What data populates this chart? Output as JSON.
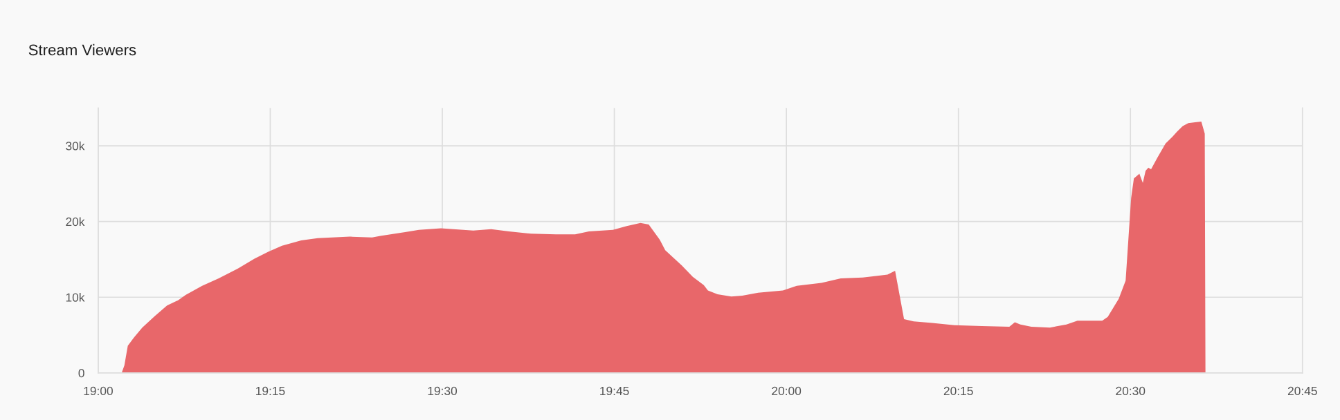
{
  "chart_data": {
    "type": "area",
    "title": "Stream Viewers",
    "series": [
      {
        "color": "#e8676a",
        "x": [
          19.034,
          19.038,
          19.043,
          19.052,
          19.064,
          19.082,
          19.1,
          19.116,
          19.127,
          19.151,
          19.175,
          19.203,
          19.227,
          19.247,
          19.267,
          19.295,
          19.319,
          19.366,
          19.398,
          19.41,
          19.446,
          19.466,
          19.498,
          19.545,
          19.571,
          19.597,
          19.629,
          19.665,
          19.693,
          19.713,
          19.748,
          19.768,
          19.788,
          19.8,
          19.816,
          19.824,
          19.848,
          19.864,
          19.88,
          19.886,
          19.9,
          19.92,
          19.936,
          19.959,
          19.995,
          20.015,
          20.051,
          20.079,
          20.111,
          20.147,
          20.158,
          20.171,
          20.185,
          20.212,
          20.244,
          20.284,
          20.324,
          20.332,
          20.34,
          20.356,
          20.383,
          20.407,
          20.423,
          20.459,
          20.467,
          20.483,
          20.493,
          20.501,
          20.505,
          20.513,
          20.518,
          20.522,
          20.526,
          20.53,
          20.539,
          20.551,
          20.561,
          20.568,
          20.576,
          20.584,
          20.594,
          20.603,
          20.608,
          20.609
        ],
        "values": [
          0,
          1000,
          3600,
          4700,
          6000,
          7500,
          8900,
          9600,
          10300,
          11500,
          12500,
          13800,
          15100,
          16000,
          16800,
          17500,
          17800,
          18000,
          17900,
          18100,
          18600,
          18900,
          19100,
          18800,
          19000,
          18700,
          18400,
          18300,
          18300,
          18700,
          18900,
          19400,
          19800,
          19600,
          17600,
          16200,
          14200,
          12700,
          11600,
          10900,
          10400,
          10100,
          10200,
          10600,
          10900,
          11500,
          11900,
          12500,
          12600,
          13000,
          13500,
          7100,
          6800,
          6600,
          6300,
          6200,
          6100,
          6700,
          6400,
          6100,
          6000,
          6400,
          6900,
          6900,
          7400,
          9800,
          12200,
          23100,
          25700,
          26300,
          25100,
          26700,
          27100,
          26900,
          28400,
          30300,
          31200,
          31900,
          32600,
          33000,
          33100,
          33200,
          31600,
          0
        ]
      }
    ],
    "xlim": [
      19,
      20.75
    ],
    "xticks": [
      {
        "value": 19,
        "label": "19:00"
      },
      {
        "value": 19.25,
        "label": "19:15"
      },
      {
        "value": 19.5,
        "label": "19:30"
      },
      {
        "value": 19.75,
        "label": "19:45"
      },
      {
        "value": 20,
        "label": "20:00"
      },
      {
        "value": 20.25,
        "label": "20:15"
      },
      {
        "value": 20.5,
        "label": "20:30"
      },
      {
        "value": 20.75,
        "label": "20:45"
      }
    ],
    "ylim": [
      0,
      35000
    ],
    "yticks": [
      {
        "value": 0,
        "label": "0"
      },
      {
        "value": 10000,
        "label": "10k"
      },
      {
        "value": 20000,
        "label": "20k"
      },
      {
        "value": 30000,
        "label": "30k"
      }
    ],
    "grid": true,
    "legend": false
  }
}
